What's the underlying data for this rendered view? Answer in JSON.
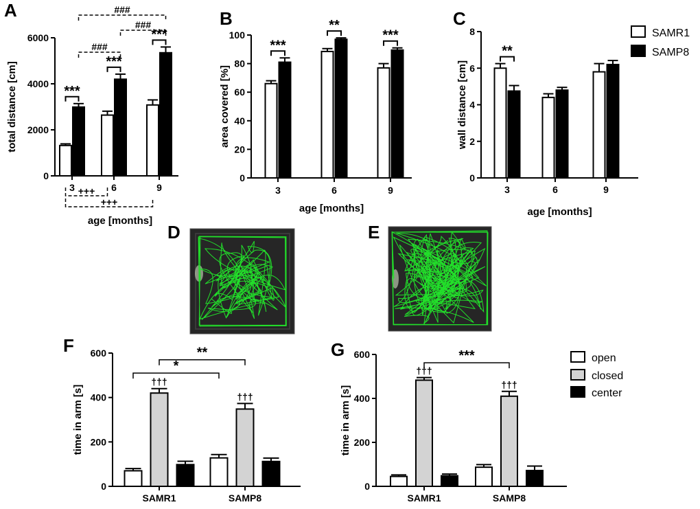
{
  "colors": {
    "open": "#ffffff",
    "closed": "#d3d3d3",
    "dark": "#000000",
    "track": "#22e02a",
    "arena_bg": "#262626"
  },
  "panels": {
    "A": "A",
    "B": "B",
    "C": "C",
    "D": "D",
    "E": "E",
    "F": "F",
    "G": "G"
  },
  "legend_top": [
    "SAMR1",
    "SAMP8"
  ],
  "legend_bottom": [
    "open",
    "closed",
    "center"
  ],
  "chart_data": [
    {
      "id": "A",
      "type": "bar",
      "categories": [
        "3",
        "6",
        "9"
      ],
      "xlabel": "age [months]",
      "ylabel": "total distance [cm]",
      "ylim": [
        0,
        6000
      ],
      "yticks": [
        0,
        2000,
        4000,
        6000
      ],
      "series": [
        {
          "name": "SAMR1",
          "values": [
            1320,
            2640,
            3080
          ],
          "errors": [
            70,
            170,
            220
          ]
        },
        {
          "name": "SAMP8",
          "values": [
            2990,
            4200,
            5350
          ],
          "errors": [
            150,
            220,
            250
          ]
        }
      ],
      "annotations": [
        {
          "text": "***",
          "kind": "bracket",
          "from": [
            0,
            0
          ],
          "to": [
            0,
            1
          ]
        },
        {
          "text": "***",
          "kind": "bracket",
          "from": [
            1,
            0
          ],
          "to": [
            1,
            1
          ]
        },
        {
          "text": "***",
          "kind": "bracket",
          "from": [
            2,
            0
          ],
          "to": [
            2,
            1
          ]
        },
        {
          "text": "###",
          "kind": "dashed-top",
          "from": [
            0,
            1
          ],
          "to": [
            1,
            1
          ]
        },
        {
          "text": "###",
          "kind": "dashed-top",
          "from": [
            1,
            1
          ],
          "to": [
            2,
            1
          ]
        },
        {
          "text": "###",
          "kind": "dashed-top",
          "from": [
            0,
            1
          ],
          "to": [
            2,
            1
          ]
        },
        {
          "text": "+++",
          "kind": "dashed-bottom",
          "from": [
            0,
            0
          ],
          "to": [
            1,
            0
          ]
        },
        {
          "text": "+++",
          "kind": "dashed-bottom",
          "from": [
            0,
            0
          ],
          "to": [
            2,
            0
          ]
        }
      ]
    },
    {
      "id": "B",
      "type": "bar",
      "categories": [
        "3",
        "6",
        "9"
      ],
      "xlabel": "age [months]",
      "ylabel": "area covered [%]",
      "ylim": [
        0,
        100
      ],
      "yticks": [
        0,
        20,
        40,
        60,
        80,
        100
      ],
      "series": [
        {
          "name": "SAMR1",
          "values": [
            66,
            88.5,
            77
          ],
          "errors": [
            2,
            2,
            3
          ]
        },
        {
          "name": "SAMP8",
          "values": [
            81,
            97,
            89.5
          ],
          "errors": [
            3,
            1,
            1.5
          ]
        }
      ],
      "annotations": [
        {
          "text": "***",
          "kind": "bracket",
          "from": [
            0,
            0
          ],
          "to": [
            0,
            1
          ]
        },
        {
          "text": "**",
          "kind": "bracket",
          "from": [
            1,
            0
          ],
          "to": [
            1,
            1
          ]
        },
        {
          "text": "***",
          "kind": "bracket",
          "from": [
            2,
            0
          ],
          "to": [
            2,
            1
          ]
        }
      ]
    },
    {
      "id": "C",
      "type": "bar",
      "categories": [
        "3",
        "6",
        "9"
      ],
      "xlabel": "age [months]",
      "ylabel": "wall distance [cm]",
      "ylim": [
        0,
        8
      ],
      "yticks": [
        0,
        2,
        4,
        6,
        8
      ],
      "series": [
        {
          "name": "SAMR1",
          "values": [
            6.0,
            4.4,
            5.8
          ],
          "errors": [
            0.25,
            0.2,
            0.45
          ]
        },
        {
          "name": "SAMP8",
          "values": [
            4.75,
            4.8,
            6.2
          ],
          "errors": [
            0.3,
            0.15,
            0.22
          ]
        }
      ],
      "annotations": [
        {
          "text": "**",
          "kind": "bracket",
          "from": [
            0,
            0
          ],
          "to": [
            0,
            1
          ]
        }
      ]
    },
    {
      "id": "F",
      "type": "bar",
      "categories": [
        "SAMR1",
        "SAMP8"
      ],
      "xlabel": "",
      "ylabel": "time in arm [s]",
      "ylim": [
        0,
        600
      ],
      "yticks": [
        0,
        200,
        400,
        600
      ],
      "series": [
        {
          "name": "open",
          "values": [
            70,
            128
          ],
          "errors": [
            10,
            15
          ]
        },
        {
          "name": "closed",
          "values": [
            420,
            348
          ],
          "errors": [
            20,
            25
          ]
        },
        {
          "name": "center",
          "values": [
            98,
            112
          ],
          "errors": [
            15,
            15
          ]
        }
      ],
      "annotations": [
        {
          "text": "†††",
          "kind": "above",
          "at": [
            0,
            1
          ]
        },
        {
          "text": "†††",
          "kind": "above",
          "at": [
            1,
            1
          ]
        },
        {
          "text": "*",
          "kind": "line",
          "from": [
            0,
            0
          ],
          "to": [
            1,
            0
          ],
          "y": 510
        },
        {
          "text": "**",
          "kind": "line",
          "from": [
            0,
            1
          ],
          "to": [
            1,
            1
          ],
          "y": 570
        }
      ]
    },
    {
      "id": "G",
      "type": "bar",
      "categories": [
        "SAMR1",
        "SAMP8"
      ],
      "xlabel": "",
      "ylabel": "time in arm [s]",
      "ylim": [
        0,
        600
      ],
      "yticks": [
        0,
        200,
        400,
        600
      ],
      "series": [
        {
          "name": "open",
          "values": [
            45,
            87
          ],
          "errors": [
            7,
            12
          ]
        },
        {
          "name": "closed",
          "values": [
            483,
            410
          ],
          "errors": [
            12,
            22
          ]
        },
        {
          "name": "center",
          "values": [
            48,
            72
          ],
          "errors": [
            8,
            20
          ]
        }
      ],
      "annotations": [
        {
          "text": "†††",
          "kind": "above",
          "at": [
            0,
            1
          ]
        },
        {
          "text": "†††",
          "kind": "above",
          "at": [
            1,
            1
          ]
        },
        {
          "text": "***",
          "kind": "line",
          "from": [
            0,
            1
          ],
          "to": [
            1,
            1
          ],
          "y": 562
        }
      ]
    }
  ]
}
